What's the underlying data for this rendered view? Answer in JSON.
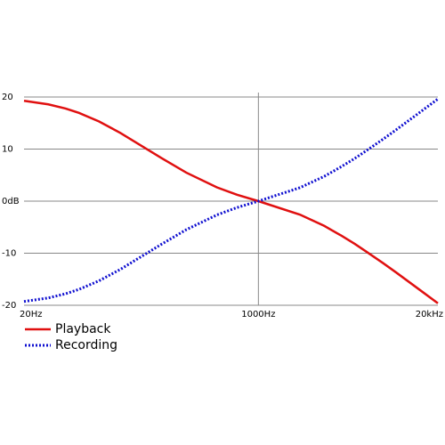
{
  "chart_data": {
    "type": "line",
    "x": [
      20,
      30,
      40,
      50,
      70,
      100,
      200,
      300,
      500,
      700,
      1000,
      2000,
      3000,
      4000,
      5000,
      6000,
      8000,
      10000,
      15000,
      20000
    ],
    "series": [
      {
        "name": "Playback",
        "color": "#e01010",
        "style": "solid",
        "values": [
          19.27,
          18.59,
          17.79,
          16.95,
          15.3,
          13.09,
          8.22,
          5.48,
          2.65,
          1.23,
          0,
          -2.59,
          -4.75,
          -6.64,
          -8.21,
          -9.62,
          -11.89,
          -13.73,
          -17.17,
          -19.62
        ]
      },
      {
        "name": "Recording",
        "color": "#1010d0",
        "style": "dotted",
        "values": [
          -19.27,
          -18.59,
          -17.79,
          -16.95,
          -15.3,
          -13.09,
          -8.22,
          -5.48,
          -2.65,
          -1.23,
          0,
          2.59,
          4.75,
          6.64,
          8.21,
          9.62,
          11.89,
          13.73,
          17.17,
          19.62
        ]
      }
    ],
    "xscale": "log",
    "xlim": [
      20,
      20000
    ],
    "xticks": [
      {
        "value": 20,
        "label": "20Hz"
      },
      {
        "value": 1000,
        "label": "1000Hz"
      },
      {
        "value": 20000,
        "label": "20kHz"
      }
    ],
    "ylim": [
      -20,
      20
    ],
    "yticks": [
      20,
      10,
      {
        "value": 0,
        "label": "0dB"
      },
      -10,
      -20
    ],
    "grid": true
  }
}
